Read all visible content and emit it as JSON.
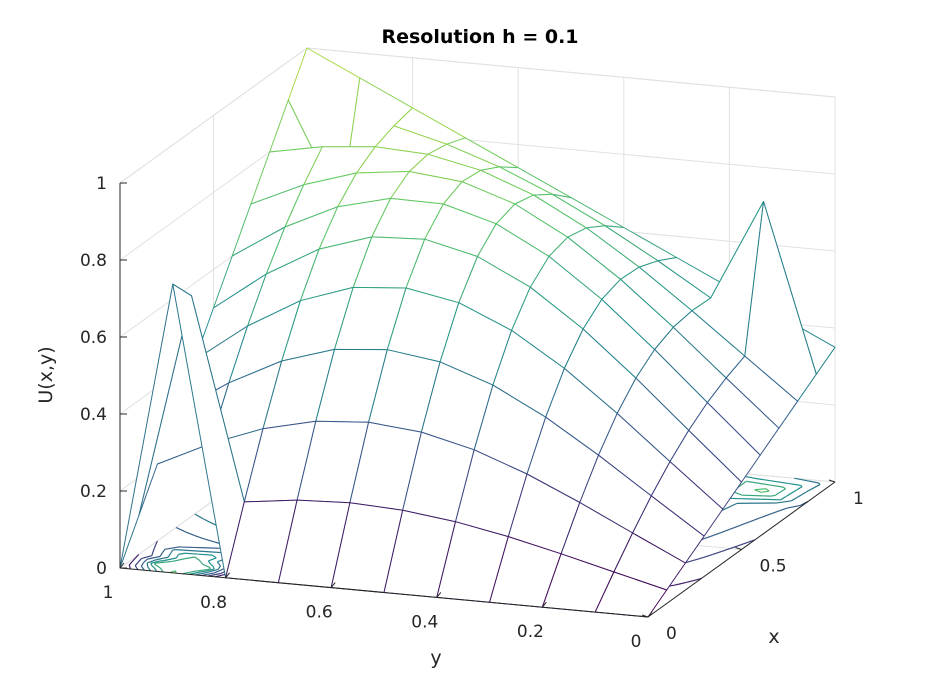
{
  "chart_data": {
    "type": "surface",
    "title": "Resolution h = 0.1",
    "xlabel": "x",
    "ylabel": "y",
    "zlabel": "U(x,y)",
    "xlim": [
      0,
      1
    ],
    "ylim": [
      0,
      1
    ],
    "zlim": [
      0,
      1
    ],
    "xticks": [
      "0",
      "0.5",
      "1"
    ],
    "yticks": [
      "0",
      "0.2",
      "0.4",
      "0.6",
      "0.8",
      "1"
    ],
    "zticks": [
      "0",
      "0.2",
      "0.4",
      "0.6",
      "0.8",
      "1"
    ],
    "grid": true,
    "colormap": [
      "#440154",
      "#3b528b",
      "#21908d",
      "#5dc963",
      "#fde725"
    ],
    "x_samples": [
      0,
      0.1,
      0.2,
      0.3,
      0.4,
      0.5,
      0.6,
      0.7,
      0.8,
      0.9,
      1
    ],
    "y_samples": [
      0,
      0.1,
      0.2,
      0.3,
      0.4,
      0.5,
      0.6,
      0.7,
      0.8,
      0.9,
      1
    ],
    "corner_values": {
      "x0_y0": 0.0,
      "x1_y0": 0.35,
      "x0_y1": 0.0,
      "x1_y1": 1.0
    },
    "notes_contours_on_floor": true
  }
}
